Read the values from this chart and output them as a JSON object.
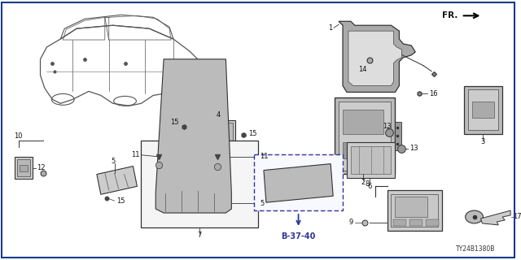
{
  "bg_color": "#ffffff",
  "border_color": "#1a3a8a",
  "fig_width": 6.4,
  "fig_height": 3.2,
  "dpi": 100,
  "diagram_code": "TY24B1380B",
  "text_color": "#111111",
  "line_color": "#333333",
  "part_fill": "#cccccc",
  "part_edge": "#333333"
}
